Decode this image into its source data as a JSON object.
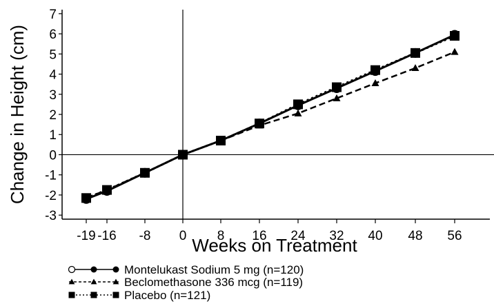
{
  "chart_data": {
    "type": "line",
    "xlabel": "Weeks on Treatment",
    "ylabel": "Change in Height (cm)",
    "x": [
      -19,
      -16,
      -8,
      0,
      8,
      16,
      24,
      32,
      40,
      48,
      56
    ],
    "xticks": [
      "-19",
      "-16",
      "-8",
      "0",
      "8",
      "16",
      "24",
      "32",
      "40",
      "48",
      "56"
    ],
    "yticks": [
      "-3",
      "-2",
      "-1",
      "0",
      "1",
      "2",
      "3",
      "4",
      "5",
      "6",
      "7"
    ],
    "ylim": [
      -3.2,
      7.2
    ],
    "grid": false,
    "legend_position": "bottom-left",
    "series": [
      {
        "name": "Montelukast Sodium 5 mg (n=120)",
        "marker": "circle",
        "line_style": "solid",
        "color": "#000000",
        "values": [
          -2.2,
          -1.8,
          -0.9,
          0.0,
          0.7,
          1.55,
          2.45,
          3.3,
          4.15,
          5.05,
          5.95
        ]
      },
      {
        "name": "Beclomethasone 336 mcg (n=119)",
        "marker": "triangle",
        "line_style": "dashed",
        "color": "#000000",
        "values": [
          -2.15,
          -1.75,
          -0.9,
          0.0,
          0.7,
          1.45,
          2.05,
          2.8,
          3.55,
          4.3,
          5.1
        ]
      },
      {
        "name": "Placebo (n=121)",
        "marker": "square",
        "line_style": "dotted",
        "color": "#000000",
        "values": [
          -2.15,
          -1.75,
          -0.9,
          0.0,
          0.7,
          1.55,
          2.5,
          3.35,
          4.2,
          5.05,
          5.9
        ]
      }
    ]
  }
}
